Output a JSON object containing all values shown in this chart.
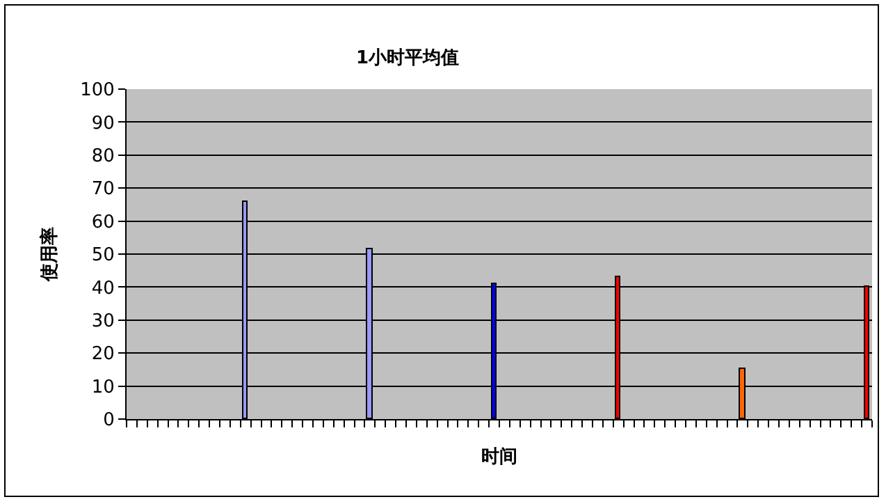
{
  "chart_data": {
    "type": "bar",
    "title": "1小时平均值",
    "xlabel": "时间",
    "ylabel": "使用率",
    "categories": [
      null,
      null,
      null,
      null,
      null,
      null,
      null,
      null,
      null,
      null,
      null,
      null,
      null,
      null,
      null,
      null,
      null,
      null,
      null,
      null,
      null,
      null,
      null,
      null,
      null,
      null,
      null,
      null,
      null,
      null,
      null,
      null,
      null,
      null,
      null,
      null,
      null,
      null,
      null,
      null,
      null,
      null,
      null,
      null,
      null,
      null,
      null,
      null,
      null,
      null,
      null,
      null,
      null,
      null,
      null,
      null,
      null,
      null,
      null,
      null,
      null,
      null,
      null,
      null,
      null,
      null,
      null,
      null,
      null,
      null,
      null,
      null
    ],
    "values": [
      null,
      null,
      null,
      null,
      null,
      null,
      null,
      null,
      null,
      null,
      null,
      66,
      null,
      null,
      null,
      null,
      null,
      null,
      null,
      null,
      null,
      null,
      null,
      51.5,
      null,
      null,
      null,
      null,
      null,
      null,
      null,
      null,
      null,
      null,
      null,
      41,
      null,
      null,
      null,
      null,
      null,
      null,
      null,
      null,
      null,
      null,
      null,
      43,
      null,
      null,
      null,
      null,
      null,
      null,
      null,
      null,
      null,
      null,
      null,
      15,
      null,
      null,
      null,
      null,
      null,
      null,
      null,
      null,
      null,
      null,
      null,
      40
    ],
    "colors": [
      null,
      null,
      null,
      null,
      null,
      null,
      null,
      null,
      null,
      null,
      null,
      "#9999ff",
      null,
      null,
      null,
      null,
      null,
      null,
      null,
      null,
      null,
      null,
      null,
      "#9999ff",
      null,
      null,
      null,
      null,
      null,
      null,
      null,
      null,
      null,
      null,
      null,
      "#0000ff",
      null,
      null,
      null,
      null,
      null,
      null,
      null,
      null,
      null,
      null,
      null,
      "#ff0000",
      null,
      null,
      null,
      null,
      null,
      null,
      null,
      null,
      null,
      null,
      null,
      "#ff6600",
      null,
      null,
      null,
      null,
      null,
      null,
      null,
      null,
      null,
      null,
      null,
      "#ff0000"
    ],
    "ylim": [
      0,
      100
    ],
    "yticks": [
      0,
      10,
      20,
      30,
      40,
      50,
      60,
      70,
      80,
      90,
      100
    ],
    "grid": "y",
    "legend": false
  }
}
